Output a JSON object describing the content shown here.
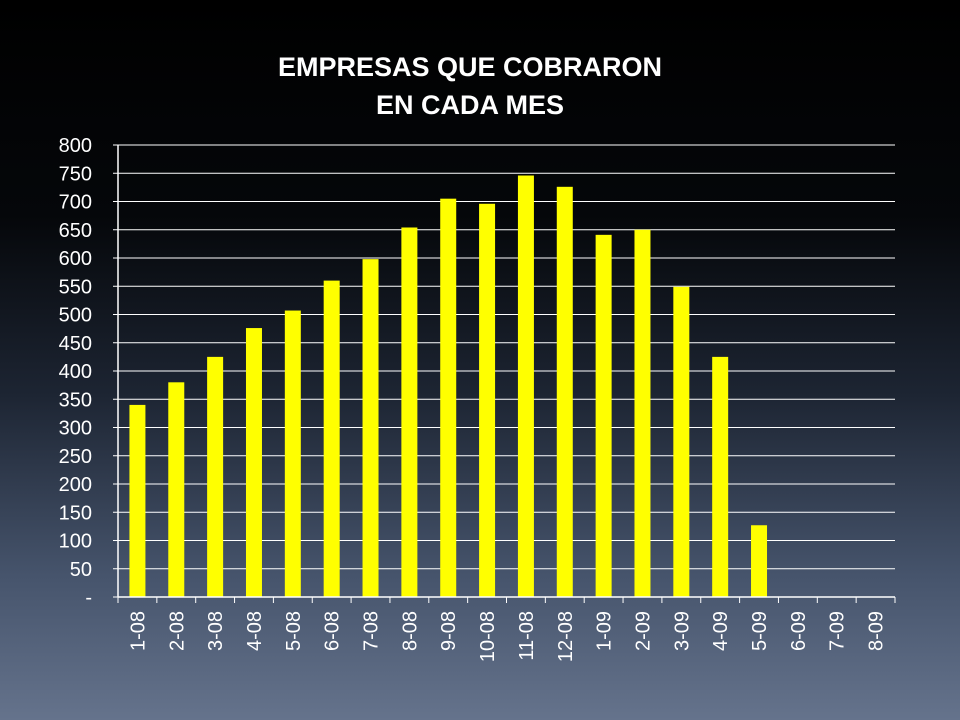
{
  "chart_data": {
    "type": "bar",
    "title_lines": [
      "EMPRESAS QUE COBRARON",
      "EN CADA MES"
    ],
    "xlabel": "",
    "ylabel": "",
    "categories": [
      "1-08",
      "2-08",
      "3-08",
      "4-08",
      "5-08",
      "6-08",
      "7-08",
      "8-08",
      "9-08",
      "10-08",
      "11-08",
      "12-08",
      "1-09",
      "2-09",
      "3-09",
      "4-09",
      "5-09",
      "6-09",
      "7-09",
      "8-09"
    ],
    "values": [
      340,
      380,
      425,
      476,
      507,
      560,
      598,
      654,
      705,
      696,
      746,
      726,
      641,
      650,
      549,
      425,
      127,
      0,
      0,
      0
    ],
    "ylim": [
      0,
      800
    ],
    "yticks": [
      0,
      50,
      100,
      150,
      200,
      250,
      300,
      350,
      400,
      450,
      500,
      550,
      600,
      650,
      700,
      750,
      800
    ],
    "ytick_labels": [
      "-",
      "50",
      "100",
      "150",
      "200",
      "250",
      "300",
      "350",
      "400",
      "450",
      "500",
      "550",
      "600",
      "650",
      "700",
      "750",
      "800"
    ],
    "grid": true,
    "legend": "none",
    "bar_color": "#ffff00",
    "axis_color": "#ffffff"
  }
}
